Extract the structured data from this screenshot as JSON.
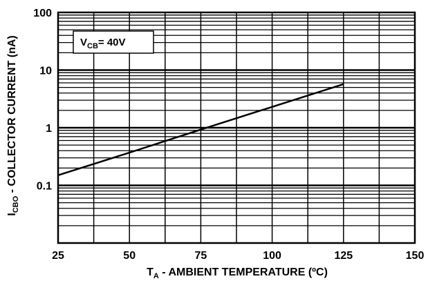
{
  "chart_data": {
    "type": "line",
    "xscale": "linear",
    "yscale": "log",
    "xlim": [
      25,
      150
    ],
    "ylim": [
      0.01,
      100
    ],
    "xticks": [
      "25",
      "50",
      "75",
      "100",
      "125",
      "150"
    ],
    "yticks": [
      "0.1",
      "1",
      "10",
      "100"
    ],
    "xlabel": {
      "prefix": "T",
      "sub": "A",
      "text": " - AMBIENT TEMPERATURE (ºC)"
    },
    "ylabel": {
      "prefix": "I",
      "sub": "CBO",
      "text": " - COLLECTOR CURRENT (nA)"
    },
    "annotation": {
      "prefix": "V",
      "sub": "CB",
      "text": "= 40V"
    },
    "grid": true,
    "series": [
      {
        "x": [
          25,
          50,
          75,
          100,
          125
        ],
        "y": [
          0.15,
          0.37,
          0.93,
          2.3,
          5.7
        ]
      }
    ]
  }
}
